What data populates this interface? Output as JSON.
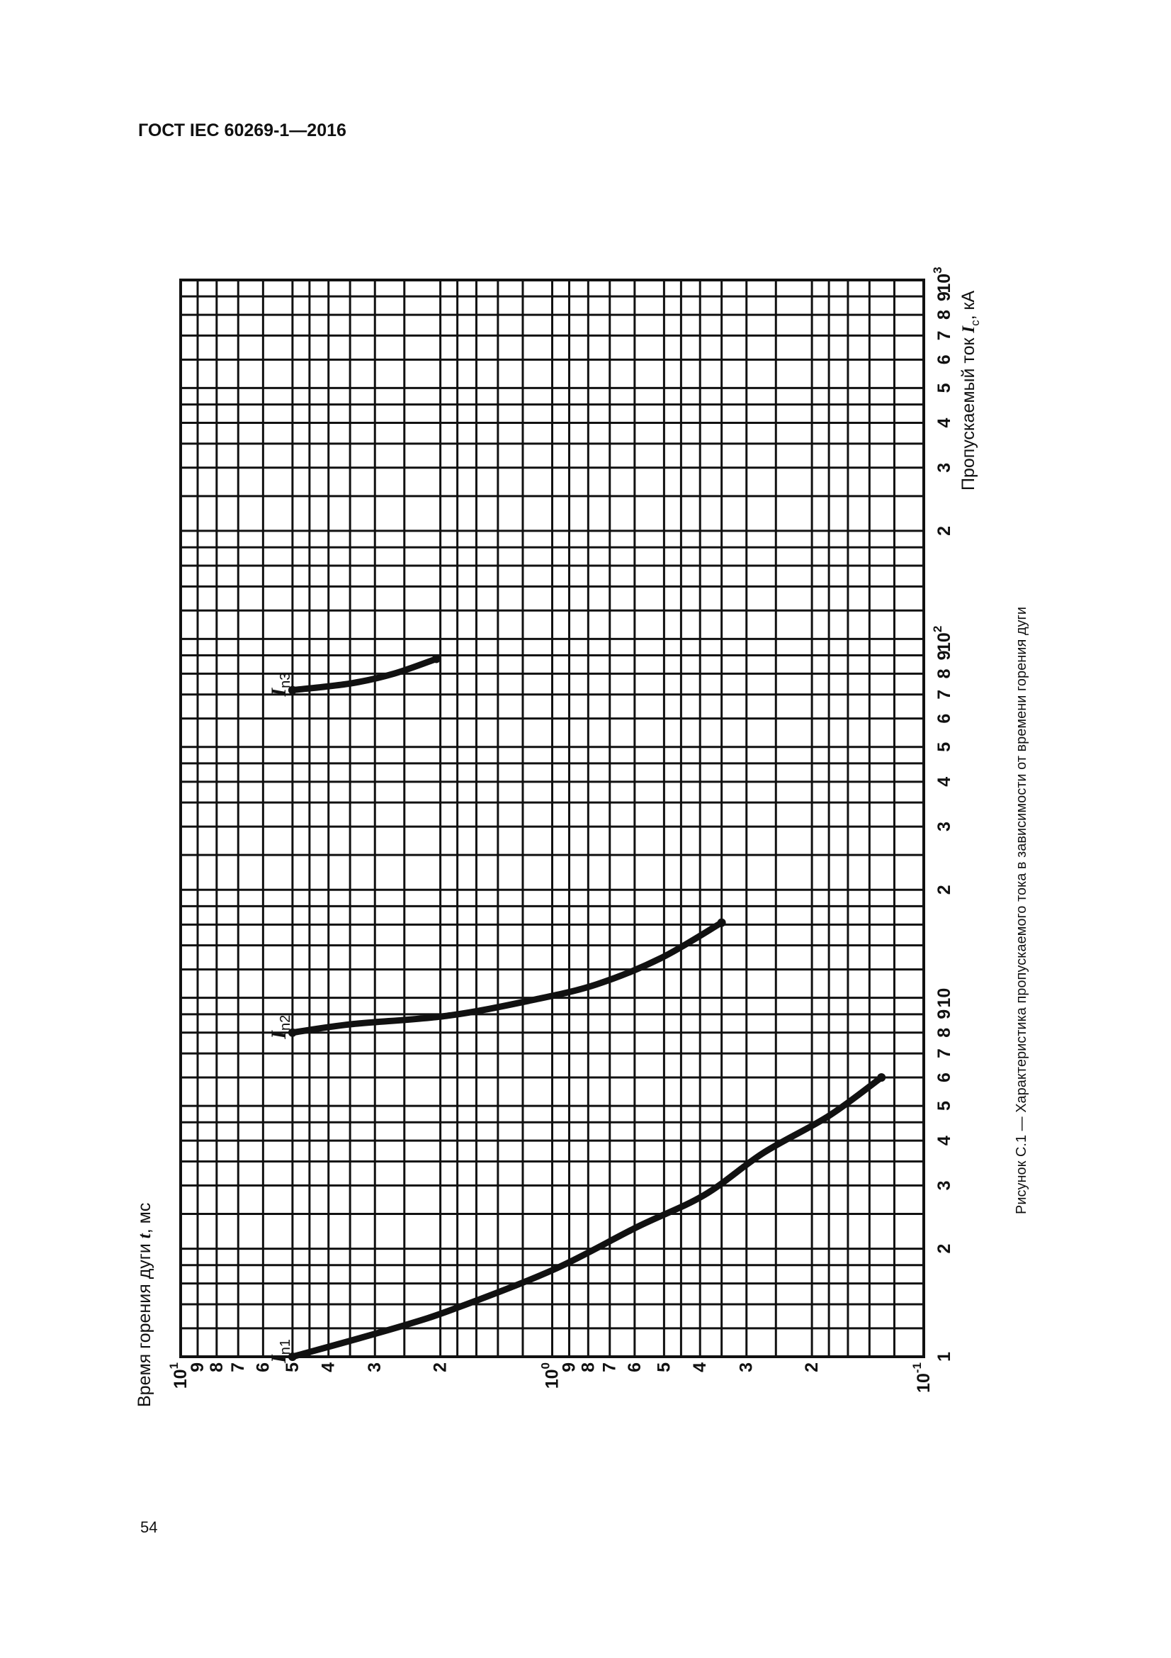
{
  "header": "ГОСТ IEC 60269-1—2016",
  "page_number": "54",
  "caption": "Рисунок С.1 — Характеристика пропускаемого тока в зависимости от времени горения дуги",
  "chart_data": {
    "type": "line",
    "orientation": "rotated 90° counter-clockwise on page",
    "xscale": "log",
    "yscale": "log",
    "xlim": [
      1,
      1000
    ],
    "ylim": [
      0.1,
      10
    ],
    "grid": true,
    "xlabel": {
      "text": "Пропускаемый ток ",
      "symbol": "I",
      "sub": "c",
      "unit": ", кА"
    },
    "ylabel": {
      "text": "Время горения дуги ",
      "symbol": "t",
      "unit": ", мс"
    },
    "x_ticks": [
      {
        "v": 1,
        "l": "1"
      },
      {
        "v": 2,
        "l": "2"
      },
      {
        "v": 3,
        "l": "3"
      },
      {
        "v": 4,
        "l": "4"
      },
      {
        "v": 5,
        "l": "5"
      },
      {
        "v": 6,
        "l": "6"
      },
      {
        "v": 7,
        "l": "7"
      },
      {
        "v": 8,
        "l": "8"
      },
      {
        "v": 9,
        "l": "9"
      },
      {
        "v": 10,
        "l": "10"
      },
      {
        "v": 20,
        "l": "2"
      },
      {
        "v": 30,
        "l": "3"
      },
      {
        "v": 40,
        "l": "4"
      },
      {
        "v": 50,
        "l": "5"
      },
      {
        "v": 60,
        "l": "6"
      },
      {
        "v": 70,
        "l": "7"
      },
      {
        "v": 80,
        "l": "8"
      },
      {
        "v": 90,
        "l": "9"
      },
      {
        "v": 100,
        "l": "10",
        "sup": "2"
      },
      {
        "v": 200,
        "l": "2"
      },
      {
        "v": 300,
        "l": "3"
      },
      {
        "v": 400,
        "l": "4"
      },
      {
        "v": 500,
        "l": "5"
      },
      {
        "v": 600,
        "l": "6"
      },
      {
        "v": 700,
        "l": "7"
      },
      {
        "v": 800,
        "l": "8"
      },
      {
        "v": 900,
        "l": "9"
      },
      {
        "v": 1000,
        "l": "10",
        "sup": "3"
      }
    ],
    "y_ticks": [
      {
        "v": 10,
        "l": "10",
        "sup": "1"
      },
      {
        "v": 9,
        "l": "9"
      },
      {
        "v": 8,
        "l": "8"
      },
      {
        "v": 7,
        "l": "7"
      },
      {
        "v": 6,
        "l": "6"
      },
      {
        "v": 5,
        "l": "5"
      },
      {
        "v": 4,
        "l": "4"
      },
      {
        "v": 3,
        "l": "3"
      },
      {
        "v": 2,
        "l": "2"
      },
      {
        "v": 1,
        "l": "10",
        "sup": "0"
      },
      {
        "v": 0.9,
        "l": "9"
      },
      {
        "v": 0.8,
        "l": "8"
      },
      {
        "v": 0.7,
        "l": "7"
      },
      {
        "v": 0.6,
        "l": "6"
      },
      {
        "v": 0.5,
        "l": "5"
      },
      {
        "v": 0.4,
        "l": "4"
      },
      {
        "v": 0.3,
        "l": "3"
      },
      {
        "v": 0.2,
        "l": "2"
      },
      {
        "v": 0.1,
        "l": "10",
        "sup": "-1"
      }
    ],
    "series": [
      {
        "name": "In1",
        "label_symbol": "I",
        "label_sub": "n1",
        "x": [
          1.0,
          1.21,
          1.37,
          1.75,
          2.3,
          2.82,
          3.7,
          4.69,
          6.0
        ],
        "y": [
          5.0,
          2.59,
          1.8,
          0.99,
          0.59,
          0.39,
          0.27,
          0.18,
          0.13
        ]
      },
      {
        "name": "In2",
        "label_symbol": "I",
        "label_sub": "n2",
        "x": [
          8.0,
          8.44,
          8.91,
          9.86,
          10.9,
          12.9,
          16.2
        ],
        "y": [
          5.0,
          3.48,
          1.92,
          1.13,
          0.76,
          0.51,
          0.35
        ]
      },
      {
        "name": "In3",
        "label_symbol": "I",
        "label_sub": "n3",
        "x": [
          72,
          75.2,
          80,
          88
        ],
        "y": [
          5.0,
          3.48,
          2.67,
          2.05
        ]
      }
    ]
  }
}
